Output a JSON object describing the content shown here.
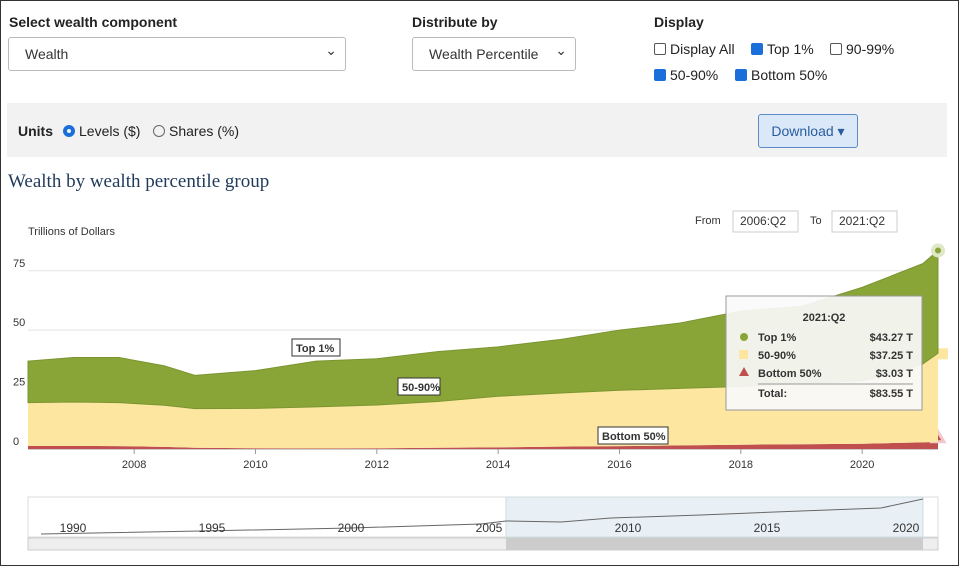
{
  "controls": {
    "component": {
      "label": "Select wealth component",
      "value": "Wealth"
    },
    "distribute": {
      "label": "Distribute by",
      "value": "Wealth Percentile"
    },
    "display": {
      "label": "Display",
      "options": [
        {
          "label": "Display All",
          "checked": false
        },
        {
          "label": "Top 1%",
          "checked": true
        },
        {
          "label": "90-99%",
          "checked": false
        },
        {
          "label": "50-90%",
          "checked": true
        },
        {
          "label": "Bottom 50%",
          "checked": true
        }
      ]
    },
    "units": {
      "label": "Units",
      "options": [
        {
          "label": "Levels ($)",
          "selected": true
        },
        {
          "label": "Shares (%)",
          "selected": false
        }
      ]
    },
    "download": "Download"
  },
  "chart_data": {
    "type": "stacked-area",
    "title": "Wealth by wealth percentile group",
    "y_label": "Trillions of Dollars",
    "from_label": "From",
    "from": "2006:Q2",
    "to_label": "To",
    "to": "2021:Q2",
    "x": [
      2006.25,
      2007,
      2007.75,
      2008.5,
      2009,
      2010,
      2011,
      2012,
      2013,
      2014,
      2015,
      2016,
      2017,
      2018,
      2019,
      2020,
      2020.5,
      2021,
      2021.25
    ],
    "xlim": [
      2006.25,
      2021.25
    ],
    "xticks": [
      2008,
      2010,
      2012,
      2014,
      2016,
      2018,
      2020
    ],
    "ylim": [
      0,
      85
    ],
    "yticks": [
      0,
      25,
      50,
      75
    ],
    "grid": true,
    "series": [
      {
        "name": "Top 1%",
        "color": "#8aa537",
        "values": [
          17.5,
          18.7,
          19,
          16.6,
          14,
          15.9,
          19.3,
          19.5,
          21,
          20.8,
          22.5,
          25.3,
          27.5,
          31.7,
          32.5,
          39.3,
          41.5,
          42.2,
          43.27
        ]
      },
      {
        "name": "50-90%",
        "color": "#fde6a0",
        "values": [
          18.2,
          18.5,
          18.3,
          17.5,
          16.5,
          16.8,
          17.5,
          18.2,
          19.5,
          21.5,
          22.5,
          23.5,
          24,
          24.5,
          25.5,
          26.5,
          29,
          33,
          37.25
        ]
      },
      {
        "name": "Bottom 50%",
        "color": "#c0504d",
        "values": [
          1.3,
          1.3,
          1.2,
          0.9,
          0.5,
          0.3,
          0.2,
          0.3,
          0.5,
          0.7,
          1,
          1.2,
          1.5,
          1.8,
          2,
          2.2,
          2.5,
          2.8,
          3.03
        ]
      }
    ],
    "tooltip": {
      "title": "2021:Q2",
      "values": [
        "$43.27 T",
        "$37.25 T",
        "$3.03 T"
      ],
      "total_label": "Total:",
      "total": "$83.55 T"
    },
    "navigator": {
      "labels": [
        "1990",
        "1995",
        "2000",
        "2005",
        "2010",
        "2015",
        "2020"
      ]
    }
  }
}
